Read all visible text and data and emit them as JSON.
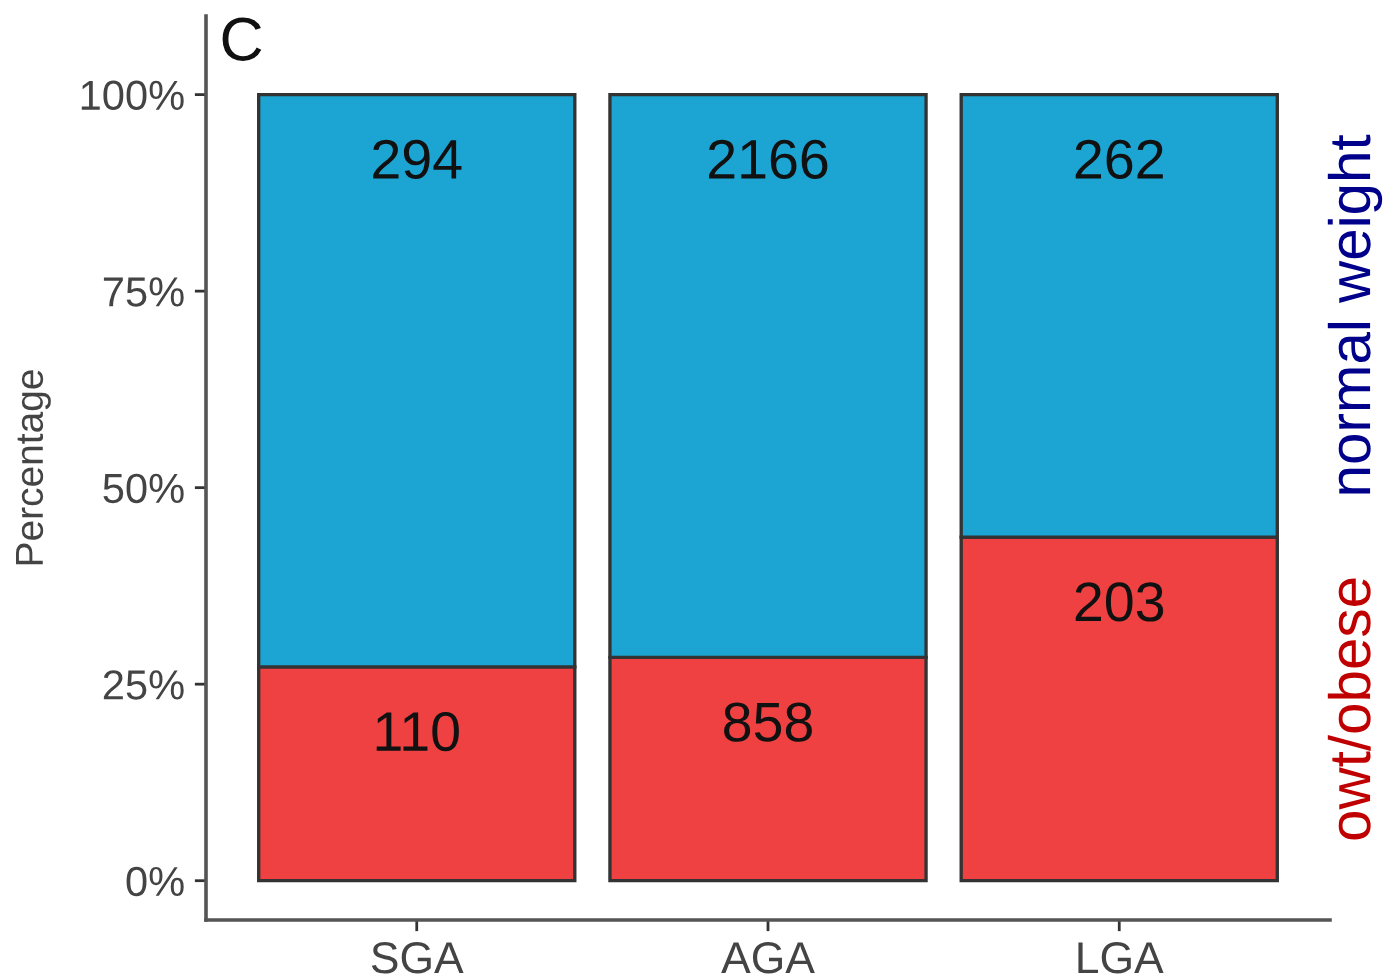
{
  "chart_data": {
    "type": "bar",
    "title": "C",
    "ylabel": "Percentage",
    "categories": [
      "SGA",
      "AGA",
      "LGA"
    ],
    "stacked": true,
    "ylim": [
      -5,
      110
    ],
    "yticks": [
      {
        "value": 0,
        "label": "0%"
      },
      {
        "value": 25,
        "label": "25%"
      },
      {
        "value": 50,
        "label": "50%"
      },
      {
        "value": 75,
        "label": "75%"
      },
      {
        "value": 100,
        "label": "100%"
      }
    ],
    "series": [
      {
        "name": "owt/obese",
        "color": "#ef4141",
        "values": [
          27.2,
          28.4,
          43.7
        ]
      },
      {
        "name": "normal weight",
        "color": "#1ca4d2",
        "values": [
          72.8,
          71.6,
          56.3
        ]
      }
    ],
    "annotations": [
      {
        "text": "110",
        "x": "SGA",
        "y": 27.2
      },
      {
        "text": "858",
        "x": "AGA",
        "y": 28.4
      },
      {
        "text": "203",
        "x": "LGA",
        "y": 43.7
      },
      {
        "text": "294",
        "x": "SGA",
        "y": 100
      },
      {
        "text": "2166",
        "x": "AGA",
        "y": 100
      },
      {
        "text": "262",
        "x": "LGA",
        "y": 100
      }
    ]
  }
}
